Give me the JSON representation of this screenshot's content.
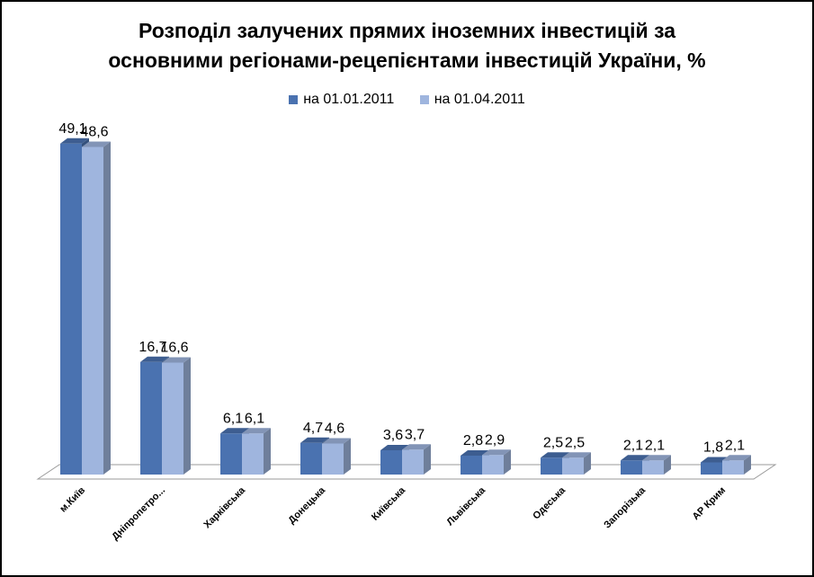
{
  "chart_data": {
    "type": "bar",
    "title_line1": "Розподіл залучених прямих іноземних інвестицій за",
    "title_line2": "основними регіонами-рецепієнтами інвестицій України, %",
    "categories": [
      "м.Київ",
      "Дніпропетро...",
      "Харківська",
      "Донецька",
      "Київська",
      "Львівська",
      "Одеська",
      "Запорізька",
      "АР Крим"
    ],
    "series": [
      {
        "name": "на 01.01.2011",
        "values": [
          49.1,
          16.7,
          6.1,
          4.7,
          3.6,
          2.8,
          2.5,
          2.1,
          1.8
        ],
        "labels": [
          "49,1",
          "16,7",
          "6,1",
          "4,7",
          "3,6",
          "2,8",
          "2,5",
          "2,1",
          "1,8"
        ],
        "color": "#4a72b0"
      },
      {
        "name": "на 01.04.2011",
        "values": [
          48.6,
          16.6,
          6.1,
          4.6,
          3.7,
          2.9,
          2.5,
          2.1,
          2.1
        ],
        "labels": [
          "48,6",
          "16,6",
          "6,1",
          "4,6",
          "3,7",
          "2,9",
          "2,5",
          "2,1",
          "2,1"
        ],
        "color": "#9fb5de"
      }
    ],
    "ylim": [
      0,
      50
    ],
    "grid": false,
    "legend_position": "top",
    "style": "3d-column"
  }
}
